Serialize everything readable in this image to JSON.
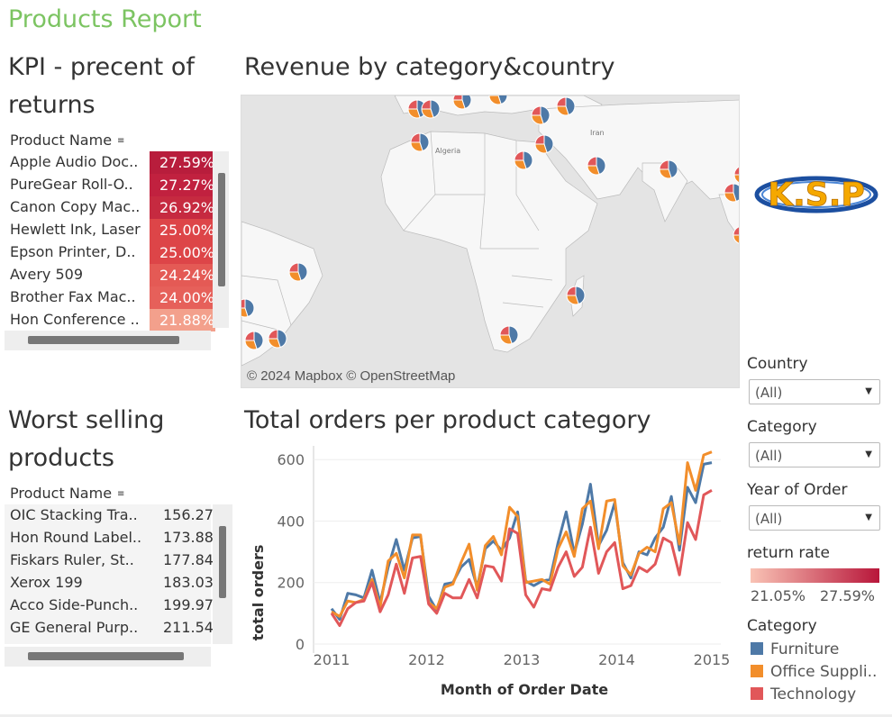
{
  "report_title": "Products Report",
  "kpi": {
    "title_line1": "KPI - precent of",
    "title_line2": "returns",
    "column_header": "Product Name",
    "rows": [
      {
        "name": "Apple Audio Doc..",
        "value": "27.59%",
        "color": "#b81d3c"
      },
      {
        "name": "PureGear Roll-O..",
        "value": "27.27%",
        "color": "#c1213f"
      },
      {
        "name": "Canon Copy Mac..",
        "value": "26.92%",
        "color": "#c62a40"
      },
      {
        "name": "Hewlett Ink, Laser",
        "value": "25.00%",
        "color": "#dd4548"
      },
      {
        "name": "Epson Printer, D..",
        "value": "25.00%",
        "color": "#dd4548"
      },
      {
        "name": "Avery 509",
        "value": "24.24%",
        "color": "#e45a55"
      },
      {
        "name": "Brother Fax Mac..",
        "value": "24.00%",
        "color": "#e6605a"
      },
      {
        "name": "Hon Conference ..",
        "value": "21.88%",
        "color": "#f3a08c"
      }
    ]
  },
  "map": {
    "title": "Revenue by category&country",
    "attribution": "© 2024 Mapbox © OpenStreetMap",
    "labels": {
      "algeria": "Algeria",
      "iran": "Iran"
    }
  },
  "logo_text": "K.S.P",
  "worst": {
    "title_line1": "Worst selling",
    "title_line2": "products",
    "column_header": "Product Name",
    "rows": [
      {
        "name": "OIC Stacking Tra..",
        "value": "156.27"
      },
      {
        "name": "Hon Round Label..",
        "value": "173.88"
      },
      {
        "name": "Fiskars Ruler, St..",
        "value": "177.84"
      },
      {
        "name": "Xerox 199",
        "value": "183.03"
      },
      {
        "name": "Acco Side-Punch..",
        "value": "199.97"
      },
      {
        "name": "GE General Purp..",
        "value": "211.54"
      }
    ]
  },
  "filters": {
    "country": {
      "label": "Country",
      "value": "(All)"
    },
    "category": {
      "label": "Category",
      "value": "(All)"
    },
    "year": {
      "label": "Year of Order",
      "value": "(All)"
    }
  },
  "return_rate": {
    "label": "return rate",
    "min": "21.05%",
    "max": "27.59%",
    "color_low": "#f9c3b5",
    "color_high": "#b8163a"
  },
  "category_legend": {
    "title": "Category",
    "items": [
      {
        "name": "Furniture",
        "color": "#4e79a7"
      },
      {
        "name": "Office Suppli..",
        "color": "#f28e2b"
      },
      {
        "name": "Technology",
        "color": "#e15759"
      }
    ]
  },
  "chart_data": {
    "type": "line",
    "title": "Total orders per product category",
    "xlabel": "Month of Order Date",
    "ylabel": "total orders",
    "x_ticks": [
      "2011",
      "2012",
      "2013",
      "2014",
      "2015"
    ],
    "y_ticks": [
      0,
      200,
      400,
      600
    ],
    "ylim": [
      0,
      630
    ],
    "x_start": "2011-01",
    "x_end": "2014-12",
    "grid": true,
    "series": [
      {
        "name": "Furniture",
        "color": "#4e79a7",
        "values": [
          115,
          80,
          165,
          160,
          150,
          240,
          135,
          250,
          340,
          240,
          345,
          350,
          155,
          110,
          195,
          200,
          250,
          275,
          185,
          310,
          335,
          305,
          345,
          430,
          205,
          190,
          205,
          210,
          330,
          430,
          295,
          390,
          520,
          320,
          370,
          460,
          265,
          215,
          300,
          290,
          345,
          380,
          480,
          305,
          510,
          460,
          585,
          590
        ]
      },
      {
        "name": "Office Supplies",
        "color": "#f28e2b",
        "values": [
          105,
          90,
          140,
          135,
          145,
          210,
          120,
          270,
          295,
          215,
          355,
          355,
          135,
          115,
          185,
          195,
          265,
          325,
          175,
          320,
          350,
          290,
          445,
          415,
          200,
          205,
          210,
          195,
          310,
          365,
          285,
          440,
          465,
          310,
          465,
          470,
          255,
          225,
          295,
          315,
          300,
          440,
          460,
          325,
          590,
          500,
          615,
          625
        ]
      },
      {
        "name": "Technology",
        "color": "#e15759",
        "values": [
          100,
          60,
          115,
          135,
          140,
          200,
          105,
          160,
          260,
          165,
          280,
          285,
          130,
          100,
          165,
          150,
          150,
          210,
          150,
          255,
          250,
          205,
          375,
          360,
          160,
          120,
          180,
          175,
          250,
          300,
          220,
          250,
          380,
          230,
          300,
          330,
          180,
          190,
          250,
          235,
          260,
          345,
          330,
          225,
          395,
          340,
          485,
          500
        ]
      }
    ]
  }
}
